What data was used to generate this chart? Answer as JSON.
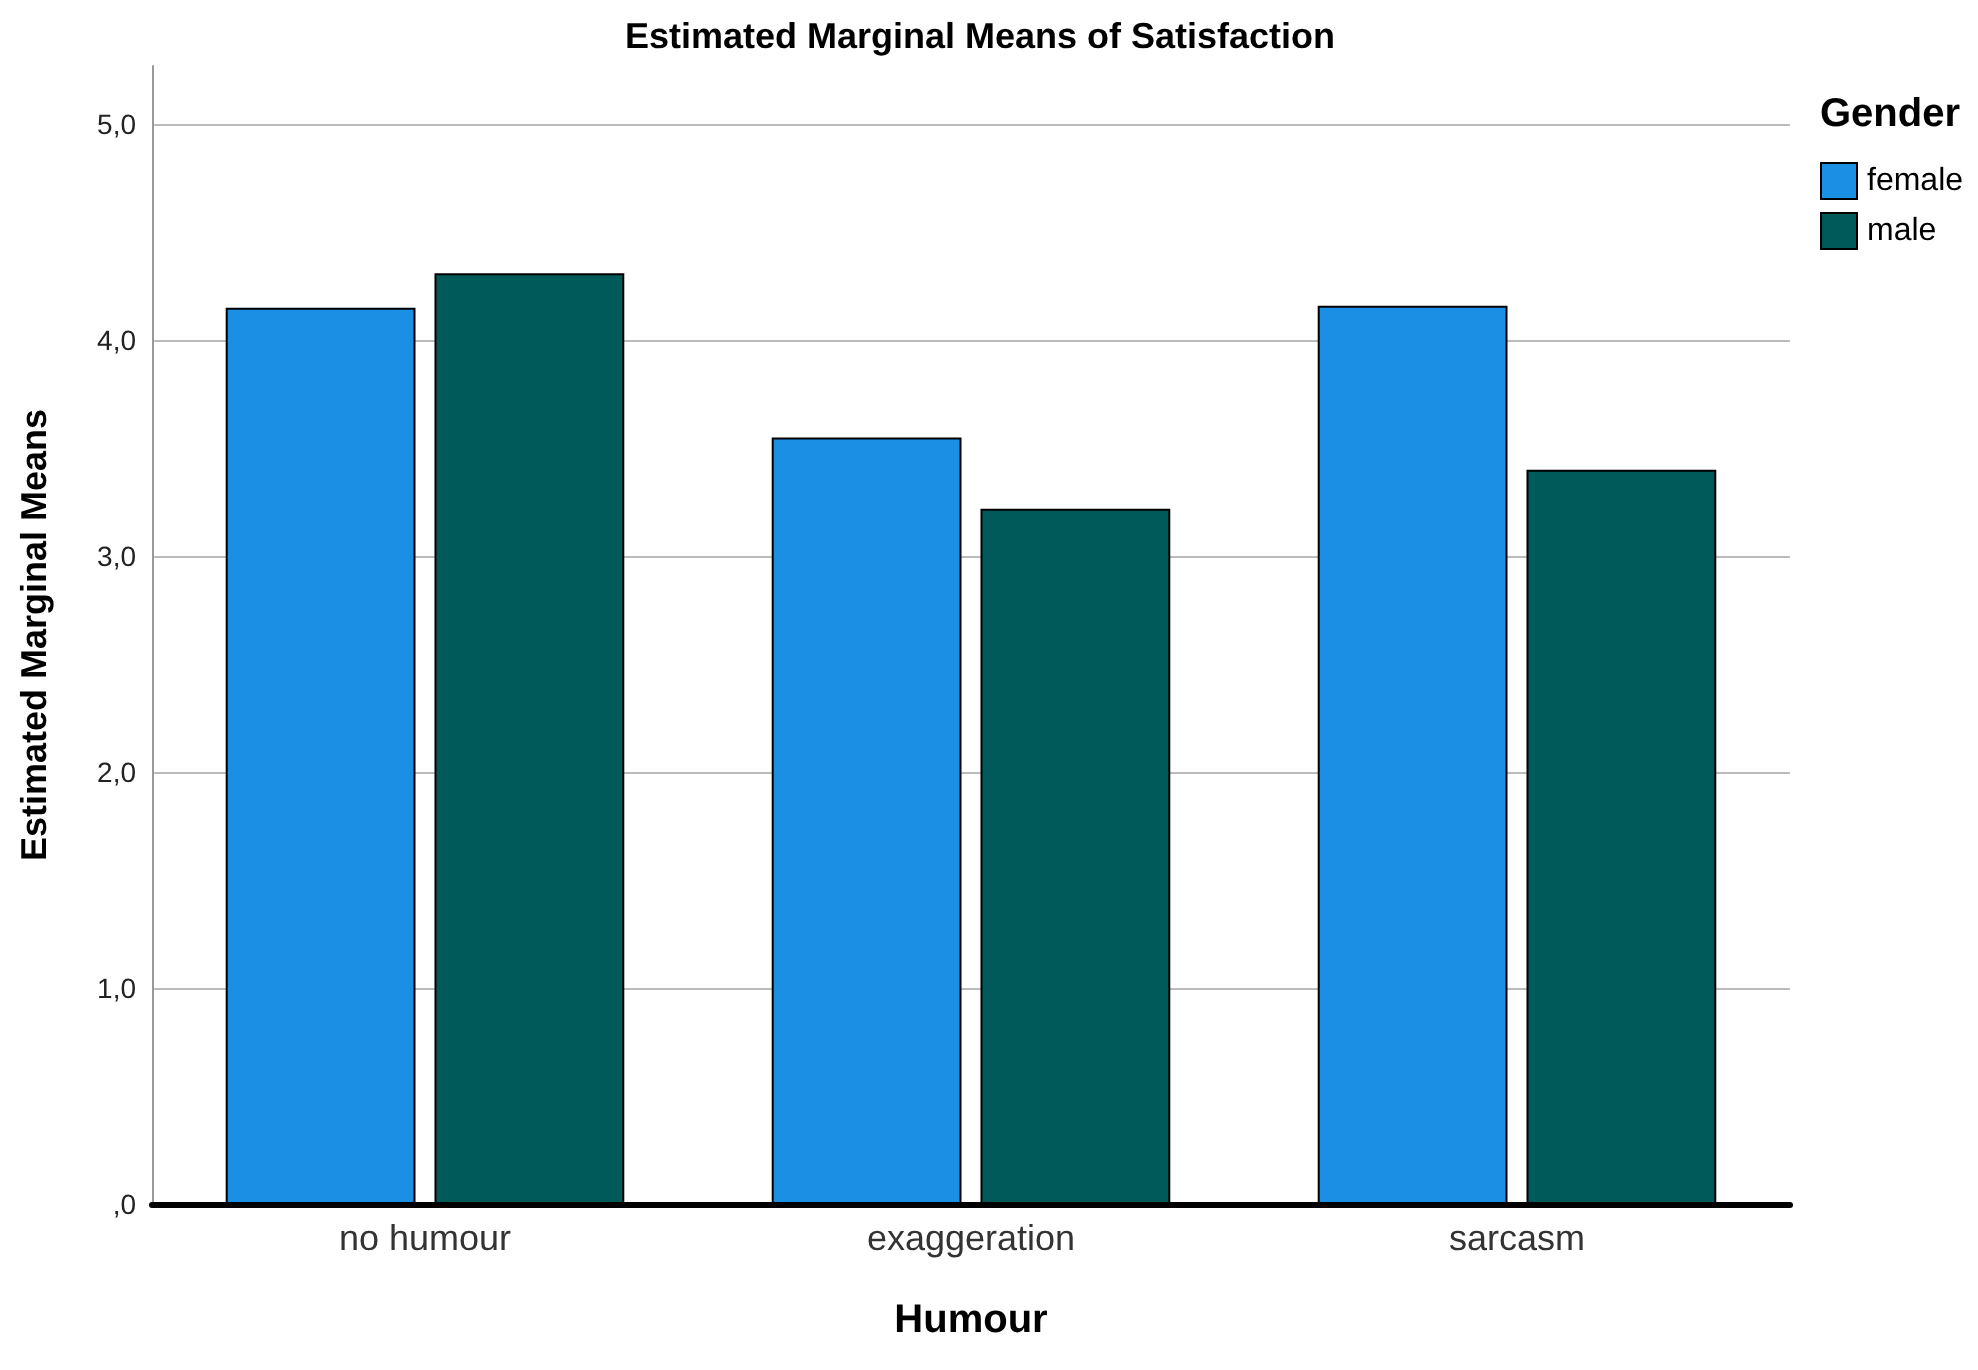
{
  "chart_data": {
    "type": "bar",
    "title": "Estimated Marginal Means of Satisfaction",
    "xlabel": "Humour",
    "ylabel": "Estimated Marginal Means",
    "legend_title": "Gender",
    "categories": [
      "no humour",
      "exaggeration",
      "sarcasm"
    ],
    "series": [
      {
        "name": "female",
        "color": "#1a8fe3",
        "values": [
          4.15,
          3.55,
          4.16
        ]
      },
      {
        "name": "male",
        "color": "#005a5a",
        "values": [
          4.31,
          3.22,
          3.4
        ]
      }
    ],
    "ylim": [
      0,
      5.27
    ],
    "yticks": [
      {
        "value": 0,
        "label": ",0"
      },
      {
        "value": 1,
        "label": "1,0"
      },
      {
        "value": 2,
        "label": "2,0"
      },
      {
        "value": 3,
        "label": "3,0"
      },
      {
        "value": 4,
        "label": "4,0"
      },
      {
        "value": 5,
        "label": "5,0"
      }
    ],
    "grid": "y",
    "legend": "top right"
  }
}
